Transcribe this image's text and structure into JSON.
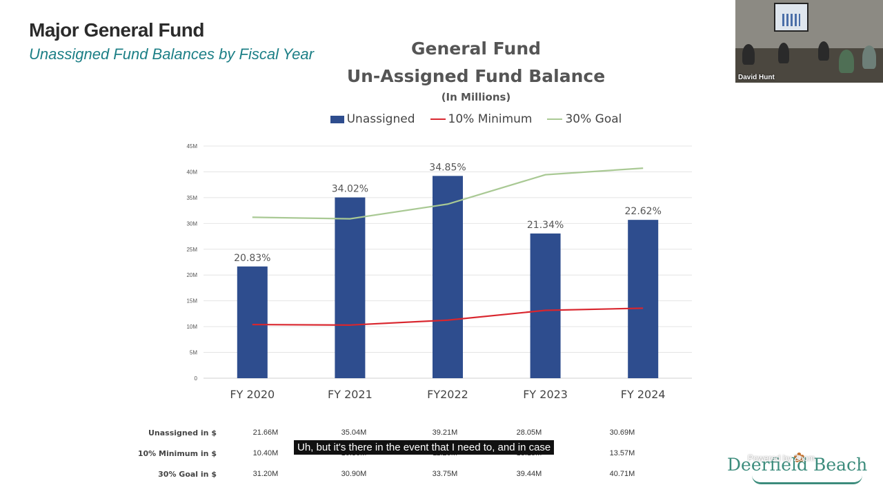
{
  "slide": {
    "title": "Major General Fund",
    "subtitle": "Unassigned Fund Balances by Fiscal Year"
  },
  "chart_data": {
    "type": "bar",
    "title": "General Fund",
    "title_line2": "Un-Assigned Fund Balance",
    "subtitle": "(In Millions)",
    "categories": [
      "FY 2020",
      "FY 2021",
      "FY2022",
      "FY 2023",
      "FY 2024"
    ],
    "series": [
      {
        "name": "Unassigned",
        "kind": "bar",
        "color": "#2e4d8e",
        "values": [
          21.66,
          35.04,
          39.21,
          28.05,
          30.69
        ]
      },
      {
        "name": "10% Minimum",
        "kind": "line",
        "color": "#d9262e",
        "values": [
          10.4,
          10.3,
          11.25,
          13.15,
          13.57
        ]
      },
      {
        "name": "30% Goal",
        "kind": "line",
        "color": "#a9c994",
        "values": [
          31.2,
          30.9,
          33.75,
          39.44,
          40.71
        ]
      }
    ],
    "bar_labels": [
      "20.83%",
      "34.02%",
      "34.85%",
      "21.34%",
      "22.62%"
    ],
    "yticks": [
      "0",
      "5M",
      "10M",
      "15M",
      "20M",
      "25M",
      "30M",
      "35M",
      "40M",
      "45M"
    ],
    "ylim": [
      0,
      45
    ],
    "grid": true,
    "legend_position": "top",
    "table": {
      "rows": [
        {
          "label": "Unassigned in $",
          "values": [
            "21.66M",
            "35.04M",
            "39.21M",
            "28.05M",
            "30.69M"
          ]
        },
        {
          "label": "10% Minimum in $",
          "values": [
            "10.40M",
            "10.30M",
            "11.25M",
            "13.15M",
            "13.57M"
          ]
        },
        {
          "label": "30% Goal in $",
          "values": [
            "31.20M",
            "30.90M",
            "33.75M",
            "39.44M",
            "40.71M"
          ]
        }
      ]
    }
  },
  "video": {
    "participant_name": "David Hunt"
  },
  "caption": {
    "text": "Uh, but it's there in the event that I need to, and in case"
  },
  "logo": {
    "text": "Deerfield Beach",
    "powered": "Powered by Zoom"
  }
}
